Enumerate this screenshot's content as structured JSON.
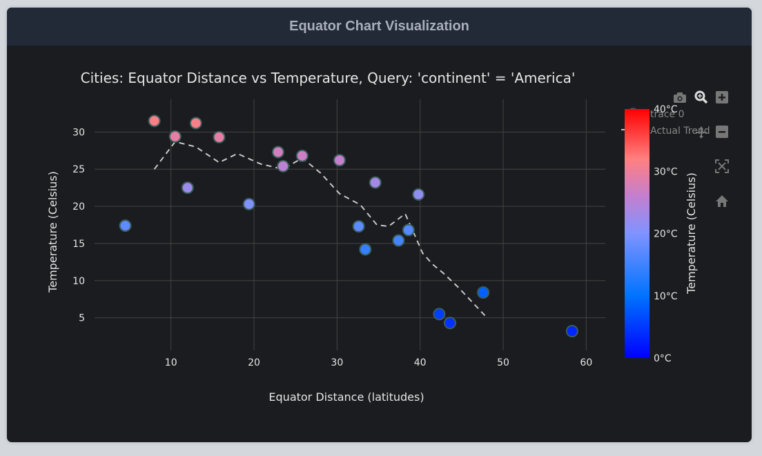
{
  "header": {
    "title": "Equator Chart Visualization"
  },
  "colors": {
    "card_bg": "#1b1c1f",
    "header_bg": "#222a38",
    "grid": "#444444",
    "text": "#e6e6e6",
    "trend": "#c8c8c8",
    "marker_outline": "#3b5d5d",
    "colorscale": [
      "#0000ff",
      "#0073ff",
      "#7f93ff",
      "#c47fcf",
      "#ff7f7f",
      "#ff0000"
    ]
  },
  "modebar": {
    "icons": [
      "camera-icon",
      "zoom-icon",
      "zoom-in-icon",
      "pan-icon",
      "zoom-out-icon",
      "autoscale-icon",
      "reset-axes-icon"
    ]
  },
  "chart_data": {
    "type": "scatter",
    "title": "Cities: Equator Distance vs Temperature, Query: 'continent' = 'America'",
    "xlabel": "Equator Distance (latitudes)",
    "ylabel": "Temperature (Celsius)",
    "xlim": [
      0.8,
      62.3
    ],
    "ylim": [
      0.6,
      34.4
    ],
    "xticks": [
      10,
      20,
      30,
      40,
      50,
      60
    ],
    "yticks": [
      5,
      10,
      15,
      20,
      25,
      30
    ],
    "grid": true,
    "legend": {
      "position": "top-right",
      "entries": [
        "trace 0",
        "Actual Trend"
      ]
    },
    "colorbar": {
      "title": "Temperature (Celsius)",
      "range": [
        0,
        40
      ],
      "ticks": [
        0,
        10,
        20,
        30,
        40
      ],
      "tick_labels": [
        "0°C",
        "10°C",
        "20°C",
        "30°C",
        "40°C"
      ]
    },
    "series": [
      {
        "name": "trace 0",
        "mode": "markers",
        "x": [
          4.5,
          8.0,
          10.5,
          12.0,
          13.0,
          15.8,
          19.4,
          22.9,
          23.5,
          25.8,
          30.3,
          32.6,
          33.4,
          34.6,
          37.4,
          38.6,
          39.8,
          42.3,
          43.6,
          47.6,
          58.3
        ],
        "y": [
          17.4,
          31.5,
          29.4,
          22.5,
          31.2,
          29.3,
          20.3,
          27.3,
          25.4,
          26.8,
          26.2,
          17.3,
          14.2,
          23.2,
          15.4,
          16.8,
          21.6,
          5.5,
          4.3,
          8.4,
          3.2
        ]
      },
      {
        "name": "Actual Trend",
        "mode": "lines",
        "x": [
          8.0,
          10.5,
          13.0,
          15.8,
          18.0,
          20.8,
          23.5,
          25.8,
          28.0,
          30.3,
          32.8,
          34.8,
          36.2,
          38.2,
          39.4,
          40.3,
          41.5,
          42.8,
          44.5,
          46.2,
          47.8
        ],
        "y": [
          25.0,
          28.7,
          28.0,
          25.9,
          27.1,
          25.7,
          25.0,
          26.5,
          24.5,
          21.7,
          20.2,
          17.5,
          17.3,
          19.0,
          16.0,
          13.7,
          12.2,
          11.0,
          9.2,
          7.2,
          5.3
        ]
      }
    ]
  }
}
